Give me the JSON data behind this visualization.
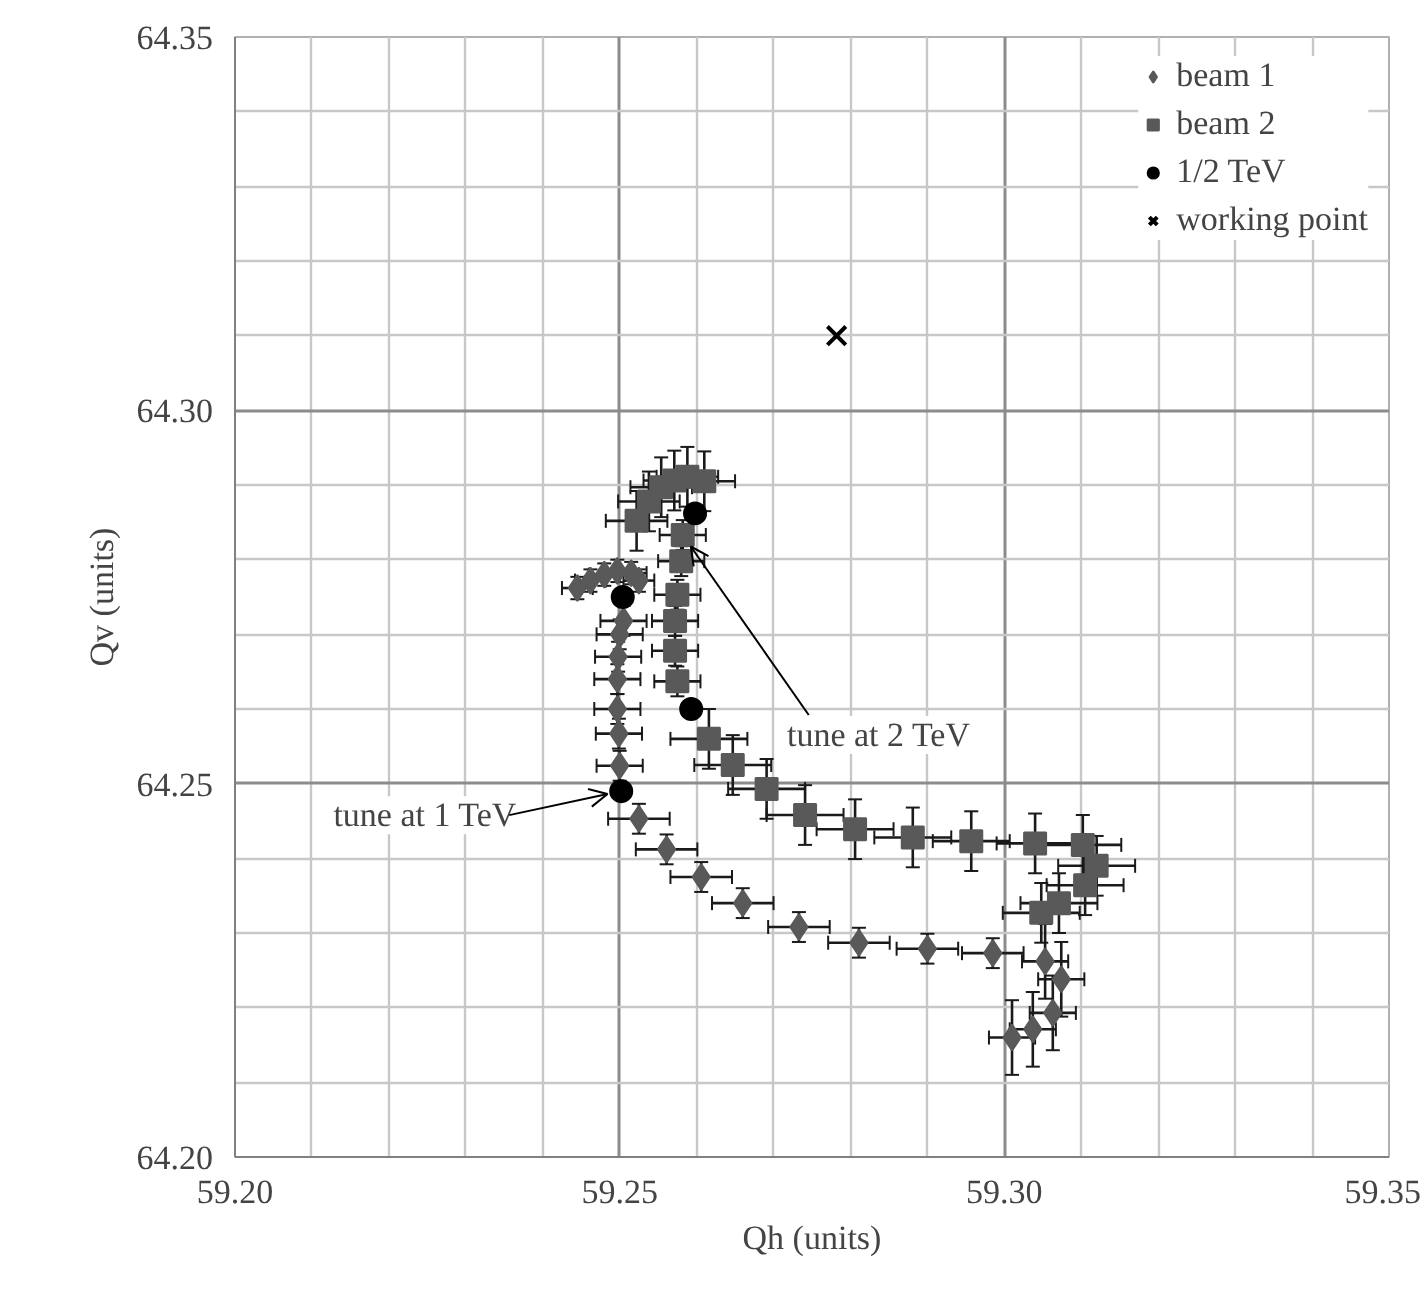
{
  "chart_data": {
    "type": "scatter",
    "xlabel": "Qh (units)",
    "ylabel": "Qv (units)",
    "xlim": [
      59.2,
      59.35
    ],
    "ylim": [
      64.2,
      64.35
    ],
    "xticks": [
      {
        "value": 59.2,
        "label": "59.20"
      },
      {
        "value": 59.21,
        "label": null
      },
      {
        "value": 59.22,
        "label": null
      },
      {
        "value": 59.23,
        "label": null
      },
      {
        "value": 59.24,
        "label": null
      },
      {
        "value": 59.25,
        "label": "59.25"
      },
      {
        "value": 59.26,
        "label": null
      },
      {
        "value": 59.27,
        "label": null
      },
      {
        "value": 59.28,
        "label": null
      },
      {
        "value": 59.29,
        "label": null
      },
      {
        "value": 59.3,
        "label": "59.30"
      },
      {
        "value": 59.31,
        "label": null
      },
      {
        "value": 59.32,
        "label": null
      },
      {
        "value": 59.33,
        "label": null
      },
      {
        "value": 59.34,
        "label": null
      },
      {
        "value": 59.35,
        "label": "59.35"
      }
    ],
    "yticks": [
      {
        "value": 64.2,
        "label": "64.20"
      },
      {
        "value": 64.21,
        "label": null
      },
      {
        "value": 64.22,
        "label": null
      },
      {
        "value": 64.23,
        "label": null
      },
      {
        "value": 64.24,
        "label": null
      },
      {
        "value": 64.25,
        "label": "64.25"
      },
      {
        "value": 64.26,
        "label": null
      },
      {
        "value": 64.27,
        "label": null
      },
      {
        "value": 64.28,
        "label": null
      },
      {
        "value": 64.29,
        "label": null
      },
      {
        "value": 64.3,
        "label": "64.30"
      },
      {
        "value": 64.31,
        "label": null
      },
      {
        "value": 64.32,
        "label": null
      },
      {
        "value": 64.33,
        "label": null
      },
      {
        "value": 64.34,
        "label": null
      },
      {
        "value": 64.35,
        "label": "64.35"
      }
    ],
    "grid": true,
    "legend": "top right",
    "series": [
      {
        "name": "beam 1",
        "marker": "diamond",
        "color": "#595959",
        "x": [
          59.2445,
          59.2462,
          59.248,
          59.2497,
          59.2515,
          59.2525,
          59.2515,
          59.2505,
          59.25,
          59.2498,
          59.2497,
          59.2497,
          59.2499,
          59.25,
          59.2525,
          59.2561,
          59.2606,
          59.266,
          59.2733,
          59.2811,
          59.29,
          59.2985,
          59.3053,
          59.3074,
          59.3063,
          59.3037,
          59.301
        ],
        "values": [
          64.2762,
          64.2772,
          64.278,
          64.2785,
          64.2782,
          64.2772,
          null,
          64.2718,
          64.27,
          64.267,
          64.264,
          64.26,
          64.2567,
          64.2524,
          64.2453,
          64.2412,
          64.2375,
          64.234,
          64.2308,
          64.2287,
          64.2279,
          64.2273,
          64.2262,
          64.2238,
          64.2193,
          64.2171,
          64.216
        ],
        "errors": [
          0.0015,
          0.0015,
          0.0015,
          0.0015,
          0.0015,
          0.0015,
          null,
          0.002,
          0.002,
          0.002,
          0.002,
          0.002,
          0.002,
          0.002,
          0.002,
          0.002,
          0.002,
          0.002,
          0.002,
          0.002,
          0.002,
          0.002,
          0.005,
          0.005,
          0.005,
          0.005,
          0.005
        ],
        "xerrors": [
          0.002,
          0.002,
          0.002,
          0.002,
          0.002,
          0.002,
          null,
          0.003,
          0.003,
          0.003,
          0.003,
          0.003,
          0.003,
          0.003,
          0.004,
          0.004,
          0.004,
          0.004,
          0.004,
          0.004,
          0.004,
          0.004,
          0.003,
          0.003,
          0.003,
          0.003,
          0.003
        ]
      },
      {
        "name": "beam 2",
        "marker": "square",
        "color": "#595959",
        "x": [
          59.2522,
          59.2538,
          59.2554,
          59.2571,
          59.2588,
          59.261,
          59.2582,
          59.258,
          59.2575,
          59.2572,
          59.2572,
          59.2575,
          59.2616,
          59.2647,
          59.2691,
          59.2741,
          59.2806,
          59.2881,
          59.2957,
          59.304,
          59.3102,
          59.312,
          59.3105,
          59.3071,
          59.3048
        ],
        "values": [
          64.2852,
          64.2878,
          64.2897,
          64.2906,
          64.2911,
          64.2905,
          64.2833,
          64.2798,
          64.2753,
          64.2718,
          64.2678,
          64.2637,
          64.256,
          64.2525,
          64.2493,
          64.2458,
          64.2439,
          64.2428,
          64.2423,
          64.242,
          64.2418,
          64.239,
          64.2364,
          64.234,
          64.2327
        ],
        "errors": [
          0.004,
          0.004,
          0.004,
          0.004,
          0.004,
          0.004,
          0.002,
          0.002,
          0.002,
          0.002,
          0.002,
          0.002,
          0.004,
          0.004,
          0.004,
          0.004,
          0.004,
          0.004,
          0.004,
          0.004,
          0.004,
          0.004,
          0.004,
          0.004,
          0.004
        ],
        "xerrors": [
          0.004,
          0.004,
          0.004,
          0.004,
          0.004,
          0.004,
          0.003,
          0.003,
          0.003,
          0.003,
          0.003,
          0.003,
          0.005,
          0.005,
          0.005,
          0.005,
          0.005,
          0.005,
          0.005,
          0.005,
          0.005,
          0.005,
          0.005,
          0.005,
          0.005
        ]
      },
      {
        "name": "1/2 TeV",
        "marker": "circle",
        "color": "#000000",
        "x": [
          59.2502,
          59.2593,
          59.2504,
          59.2598
        ],
        "values": [
          64.249,
          64.26,
          64.275,
          64.2862
        ]
      },
      {
        "name": "working point",
        "marker": "cross",
        "color": "#000000",
        "x": [
          59.2782
        ],
        "values": [
          64.31
        ]
      }
    ],
    "annotations": [
      {
        "text": "tune at 1 TeV",
        "x": 59.2502,
        "y": 64.249
      },
      {
        "text": "tune at 2 TeV",
        "x": 59.2582,
        "y": 64.2833
      }
    ]
  }
}
